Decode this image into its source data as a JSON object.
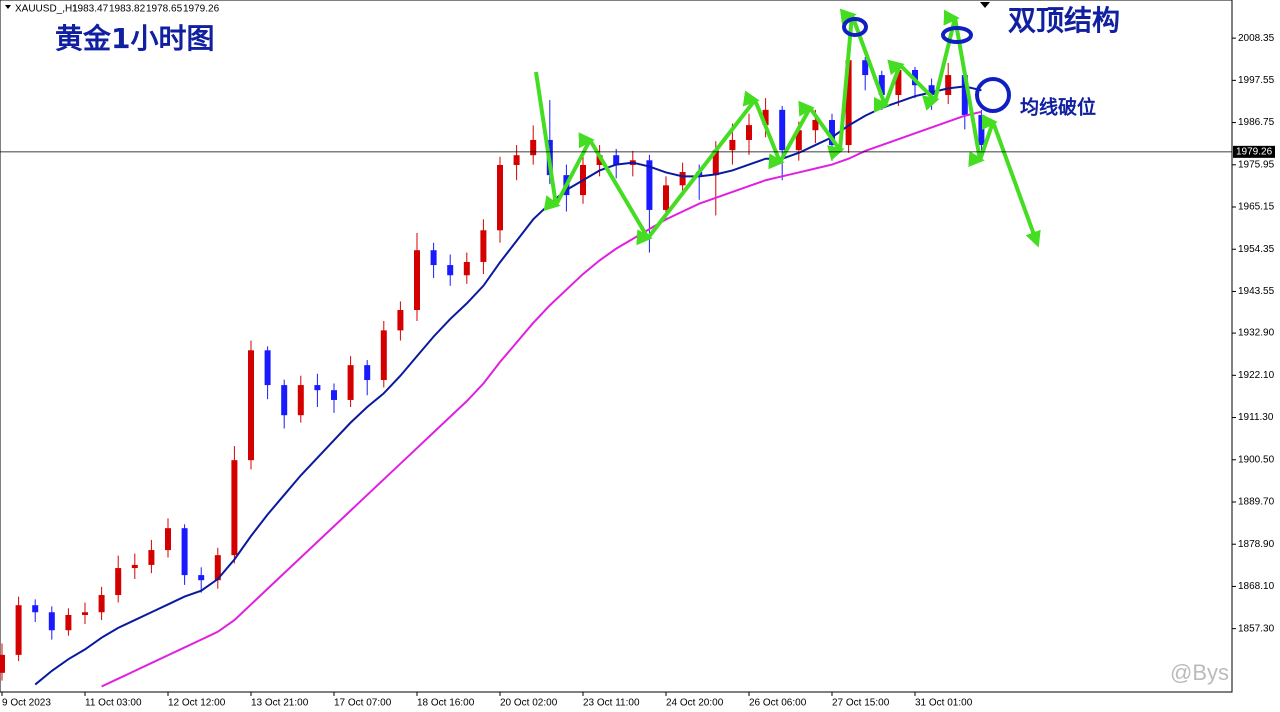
{
  "chart_data": {
    "type": "candlestick",
    "symbol": "XAUUSD_,H1",
    "header_values": [
      1983.47,
      1983.82,
      1978.65,
      1979.26
    ],
    "title": "黄金1小时图",
    "annotations": [
      "双顶结构",
      "均线破位"
    ],
    "watermark": "@Bys",
    "categories": [
      "9 Oct 2023",
      null,
      null,
      null,
      null,
      "11 Oct 03:00",
      null,
      null,
      null,
      null,
      "12 Oct 12:00",
      null,
      null,
      null,
      null,
      "13 Oct 21:00",
      null,
      null,
      null,
      null,
      "17 Oct 07:00",
      null,
      null,
      null,
      null,
      "18 Oct 16:00",
      null,
      null,
      null,
      null,
      "20 Oct 02:00",
      null,
      null,
      null,
      null,
      "23 Oct 11:00",
      null,
      null,
      null,
      null,
      "24 Oct 20:00",
      null,
      null,
      null,
      null,
      "26 Oct 06:00",
      null,
      null,
      null,
      null,
      "27 Oct 15:00",
      null,
      null,
      null,
      null,
      "31 Oct 01:00",
      null,
      null,
      null,
      null
    ],
    "open": [
      1846.0,
      1850.6,
      1863.3,
      1861.5,
      1856.9,
      1860.8,
      1861.5,
      1865.9,
      1872.8,
      1873.6,
      1877.4,
      1883.0,
      1871.0,
      1869.7,
      1876.1,
      1900.4,
      1928.5,
      1919.6,
      1911.9,
      1919.6,
      1918.3,
      1915.8,
      1924.7,
      1920.9,
      1933.6,
      1938.8,
      1954.1,
      1950.3,
      1947.7,
      1951.1,
      1959.2,
      1975.9,
      1978.4,
      1982.3,
      1973.3,
      1968.2,
      1975.9,
      1978.4,
      1975.9,
      1977.1,
      1964.4,
      1970.7,
      1974.1,
      1973.3,
      1979.7,
      1982.3,
      1986.1,
      1990.0,
      1979.7,
      1984.8,
      1987.4,
      1981.0,
      2002.7,
      1998.9,
      1993.8,
      2000.2,
      1996.3,
      1993.8,
      1998.9,
      1988.7
    ],
    "high": [
      1853.5,
      1865.5,
      1864.8,
      1863,
      1862.5,
      1864,
      1868,
      1876,
      1876.5,
      1880,
      1885.5,
      1884,
      1873,
      1878,
      1904,
      1931,
      1929.5,
      1921,
      1922,
      1922.5,
      1920,
      1927,
      1926,
      1936,
      1941,
      1958.5,
      1956,
      1953,
      1953.5,
      1962,
      1978,
      1981,
      1986,
      1992.5,
      1976,
      1978,
      1981,
      1980,
      1979.5,
      1978.5,
      1973,
      1976.5,
      1976,
      1982,
      1986.5,
      1989,
      1993,
      1991,
      1987,
      1990,
      1989,
      2005,
      2003.5,
      2000,
      2002,
      2001,
      1998,
      2002,
      2000,
      1990
    ],
    "low": [
      1844,
      1849,
      1859,
      1854.5,
      1855.5,
      1858.5,
      1859.5,
      1864,
      1870,
      1871.5,
      1875.5,
      1868.5,
      1866.5,
      1867.5,
      1874,
      1898,
      1916,
      1908.5,
      1910,
      1914,
      1912.5,
      1914,
      1917,
      1919,
      1931,
      1936,
      1947,
      1945,
      1945.5,
      1948,
      1956,
      1972,
      1976,
      1971,
      1964,
      1966,
      1973,
      1972.5,
      1973,
      1953.5,
      1962,
      1968,
      1967,
      1963,
      1976,
      1978.5,
      1983,
      1972,
      1977,
      1981.5,
      1977,
      1979,
      1995,
      1990,
      1991,
      1993,
      1990,
      1991.5,
      1985,
      1978
    ],
    "close": [
      1850.6,
      1863.3,
      1861.5,
      1856.9,
      1860.8,
      1861.5,
      1865.9,
      1872.8,
      1873.6,
      1877.4,
      1883.0,
      1871.0,
      1869.7,
      1876.1,
      1900.4,
      1928.5,
      1919.6,
      1911.9,
      1919.6,
      1918.3,
      1915.8,
      1924.7,
      1920.9,
      1933.6,
      1938.8,
      1954.1,
      1950.3,
      1947.7,
      1951.1,
      1959.2,
      1975.9,
      1978.4,
      1982.3,
      1973.3,
      1968.2,
      1975.9,
      1978.4,
      1975.9,
      1977.1,
      1964.4,
      1970.7,
      1974.1,
      1973.3,
      1979.7,
      1982.3,
      1986.1,
      1990.0,
      1979.7,
      1984.8,
      1987.4,
      1981.0,
      2002.7,
      1998.9,
      1993.8,
      2000.2,
      1996.3,
      1993.8,
      1998.9,
      1988.7,
      1981.0
    ],
    "up_color": "#d40000",
    "down_color": "#1a1aff",
    "series": [
      {
        "color": "#0a1a9e",
        "values": [
          null,
          null,
          1843.0,
          1846.5,
          1849.5,
          1852,
          1855,
          1857.5,
          1859.5,
          1861.5,
          1863.5,
          1865.5,
          1867,
          1870,
          1875,
          1881,
          1886.5,
          1891.5,
          1896.5,
          1901,
          1905.5,
          1910,
          1914,
          1917.5,
          1922,
          1927,
          1932,
          1936.5,
          1940.5,
          1945,
          1951,
          1956.5,
          1962,
          1966,
          1969.5,
          1972,
          1974.5,
          1976,
          1976.5,
          1975.5,
          1974,
          1973,
          1973,
          1973.5,
          1974.5,
          1976,
          1977.5,
          1977.5,
          1979,
          1981,
          1983,
          1986,
          1988.5,
          1990.5,
          1992,
          1993.5,
          1994.5,
          1995.5,
          1996,
          1995
        ]
      },
      {
        "color": "#e020e0",
        "values": [
          null,
          null,
          null,
          null,
          null,
          null,
          1842.5,
          1844.5,
          1846.5,
          1848.5,
          1850.5,
          1852.5,
          1854.5,
          1856.5,
          1859.5,
          1863.5,
          1867.5,
          1871.5,
          1875.5,
          1879.5,
          1883.5,
          1887.5,
          1891.5,
          1895.5,
          1899.5,
          1903.5,
          1907.5,
          1911.5,
          1915.5,
          1920,
          1925.5,
          1930.5,
          1935.5,
          1940,
          1944,
          1948,
          1951.5,
          1954.5,
          1957,
          1959.5,
          1962,
          1964,
          1966,
          1967.5,
          1969,
          1970.5,
          1972,
          1973,
          1974,
          1975,
          1976,
          1977.5,
          1979.5,
          1981,
          1982.5,
          1984,
          1985.5,
          1987,
          1988.5,
          1989.5
        ]
      }
    ],
    "last_price": 1979.26,
    "ylim": [
      1841.1,
      2018.1
    ],
    "yticks": [
      2008.35,
      1997.55,
      1986.75,
      1975.95,
      1965.15,
      1954.35,
      1943.55,
      {
        "value": 1932.9,
        "label": "1932.90"
      },
      {
        "value": 1922.1,
        "label": "1922.10"
      },
      {
        "value": 1911.3,
        "label": "1911.30"
      },
      {
        "value": 1900.5,
        "label": "1900.50"
      },
      {
        "value": 1889.7,
        "label": "1889.70"
      },
      {
        "value": 1878.9,
        "label": "1878.90"
      },
      {
        "value": 1868.1,
        "label": "1868.10"
      },
      {
        "value": 1857.3,
        "label": "1857.30"
      }
    ]
  }
}
